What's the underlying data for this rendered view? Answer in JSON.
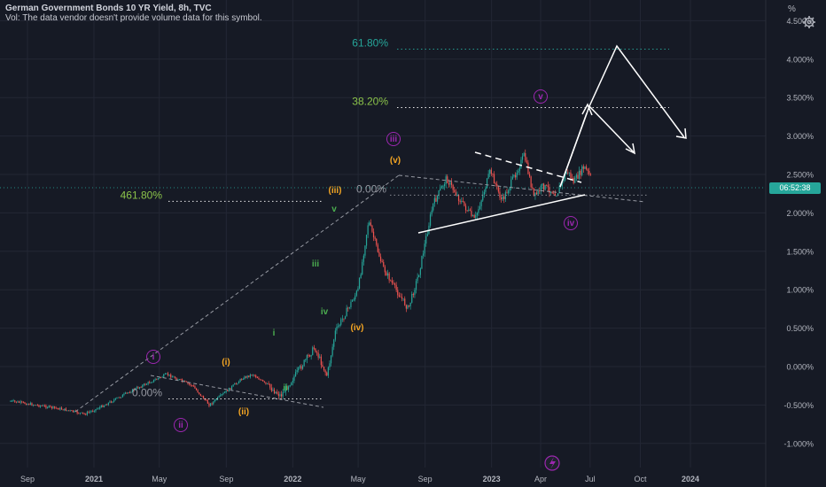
{
  "header": {
    "symbol_line": "German Government Bonds 10 YR Yield, 8h, TVC",
    "volume_note": "Vol: The data vendor doesn't provide volume data for this symbol."
  },
  "price_axis": {
    "unit": "%",
    "current_time_tag": "06:52:38",
    "tag_color": "#26a69a"
  },
  "colors": {
    "background": "#161a25",
    "up_candle": "#26a69a",
    "down_candle": "#ef5350",
    "fib_green": "#8bc34a",
    "fib_teal": "#26a69a",
    "wave_orange": "#f5a623",
    "wave_purple": "#9c27b0",
    "wave_green": "#4caf50",
    "projection_white": "#ffffff"
  },
  "icons": {
    "settings": "gear-icon",
    "flash": "lightning-icon"
  },
  "chart_data": {
    "type": "line",
    "title": "German Government Bonds 10 YR Yield, 8h, TVC",
    "y_unit": "%",
    "ylim": [
      -1.15,
      4.7
    ],
    "y_ticks": [
      "4.500%",
      "4.000%",
      "3.500%",
      "3.000%",
      "2.500%",
      "2.000%",
      "1.500%",
      "1.000%",
      "0.500%",
      "0.000%",
      "-0.500%",
      "-1.000%"
    ],
    "y_tick_values": [
      4.5,
      4.0,
      3.5,
      3.0,
      2.5,
      2.0,
      1.5,
      1.0,
      0.5,
      0.0,
      -0.5,
      -1.0
    ],
    "x_ticks": [
      "Sep",
      "2021",
      "May",
      "Sep",
      "2022",
      "May",
      "Sep",
      "2023",
      "Apr",
      "Jul",
      "Oct",
      "2024"
    ],
    "x_tick_dates": [
      "2020-09-01",
      "2021-01-01",
      "2021-05-01",
      "2021-09-01",
      "2022-01-01",
      "2022-05-01",
      "2022-09-01",
      "2023-01-01",
      "2023-04-01",
      "2023-07-01",
      "2023-10-01",
      "2024-01-01"
    ],
    "series": [
      {
        "x": [
          "2020-08-01",
          "2020-11-01",
          "2020-12-15",
          "2021-01-15",
          "2021-03-15",
          "2021-05-15",
          "2021-07-01",
          "2021-08-01",
          "2021-10-01",
          "2021-10-20",
          "2021-12-10",
          "2022-02-10",
          "2022-03-05",
          "2022-03-20",
          "2022-05-01",
          "2022-05-20",
          "2022-06-15",
          "2022-07-05",
          "2022-08-01",
          "2022-08-20",
          "2022-09-15",
          "2022-10-10",
          "2022-11-01",
          "2022-12-01",
          "2022-12-30",
          "2023-01-20",
          "2023-02-10",
          "2023-03-02",
          "2023-03-20",
          "2023-04-05",
          "2023-05-01",
          "2023-05-20",
          "2023-06-01",
          "2023-06-20",
          "2023-07-03"
        ],
        "values": [
          -0.45,
          -0.55,
          -0.62,
          -0.52,
          -0.3,
          -0.1,
          -0.25,
          -0.5,
          -0.15,
          -0.1,
          -0.38,
          0.25,
          -0.12,
          0.45,
          1.0,
          1.9,
          1.3,
          1.05,
          0.75,
          1.2,
          2.1,
          2.45,
          2.2,
          1.9,
          2.55,
          2.15,
          2.45,
          2.75,
          2.2,
          2.35,
          2.25,
          2.55,
          2.4,
          2.6,
          2.45
        ]
      }
    ],
    "fib_levels": [
      {
        "label": "61.80%",
        "value": 4.13
      },
      {
        "label": "38.20%",
        "value": 3.37
      },
      {
        "label": "461.80%",
        "value": 2.15
      },
      {
        "label": "0.00%",
        "value": 2.23
      },
      {
        "label": "0.00%",
        "value": -0.42
      }
    ],
    "wave_labels": [
      "i",
      "ii",
      "(i)",
      "(ii)",
      "i",
      "ii",
      "iii",
      "iv",
      "v",
      "(iii)",
      "(iv)",
      "iii",
      "(v)",
      "iv",
      "v"
    ]
  }
}
